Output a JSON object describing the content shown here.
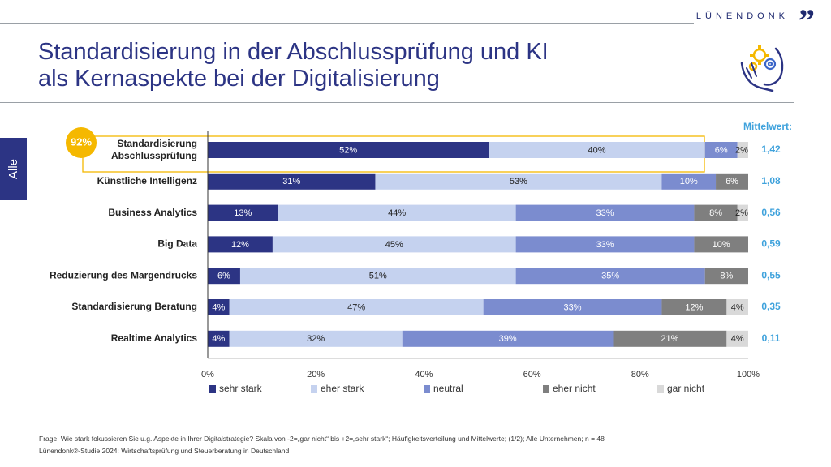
{
  "brand": {
    "name": "LÜNENDONK",
    "quote_mark": "”"
  },
  "title": {
    "line1": "Standardisierung in der Abschlussprüfung und KI",
    "line2": "als Kernaspekte bei der Digitalisierung"
  },
  "side_tab": "Alle",
  "colors": {
    "primary": "#2c3484",
    "highlight": "#f5b800",
    "mean": "#3fa2dc"
  },
  "chart_data": {
    "type": "bar",
    "orientation": "horizontal",
    "stacked": true,
    "categories": [
      "Standardisierung Abschlussprüfung",
      "Künstliche Intelligenz",
      "Business Analytics",
      "Big Data",
      "Reduzierung des Margendrucks",
      "Standardisierung Beratung",
      "Realtime Analytics"
    ],
    "series": [
      {
        "name": "sehr stark",
        "color": "#2c3484",
        "values": [
          52,
          31,
          13,
          12,
          6,
          4,
          4
        ]
      },
      {
        "name": "eher stark",
        "color": "#c5d2ef",
        "values": [
          40,
          53,
          44,
          45,
          51,
          47,
          32
        ]
      },
      {
        "name": "neutral",
        "color": "#7b8ccf",
        "values": [
          6,
          10,
          33,
          33,
          35,
          33,
          39
        ]
      },
      {
        "name": "eher nicht",
        "color": "#7f7f7f",
        "values": [
          0,
          6,
          8,
          10,
          8,
          12,
          21
        ]
      },
      {
        "name": "gar nicht",
        "color": "#d9d9d9",
        "values": [
          2,
          0,
          2,
          0,
          0,
          4,
          4
        ]
      }
    ],
    "mean_header": "Mittelwert:",
    "means": [
      "1,42",
      "1,08",
      "0,56",
      "0,59",
      "0,55",
      "0,35",
      "0,11"
    ],
    "highlight": {
      "category_index": 0,
      "label": "92%"
    },
    "x_ticks": [
      "0%",
      "20%",
      "40%",
      "60%",
      "80%",
      "100%"
    ],
    "xlim": [
      0,
      100
    ],
    "legend_position": "bottom"
  },
  "footnote": {
    "question": "Frage: Wie stark fokussieren Sie u.g. Aspekte in Ihrer Digitalstrategie? Skala von -2=„gar nicht“ bis +2=„sehr stark“; Häufigkeitsverteilung und Mittelwerte; (1/2); Alle Unternehmen; n = 48",
    "source": "Lünendonk®-Studie 2024: Wirtschaftsprüfung und Steuerberatung in Deutschland"
  }
}
